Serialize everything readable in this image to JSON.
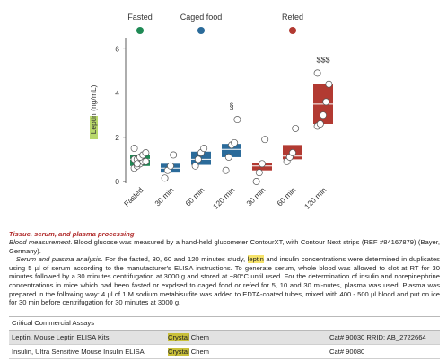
{
  "chart_data": {
    "type": "box",
    "ylabel_parts": [
      "Leptin",
      " (ng/mL)"
    ],
    "ylim": [
      0,
      6.5
    ],
    "yticks": [
      0,
      2,
      4,
      6
    ],
    "groups": [
      {
        "label": "Fasted",
        "color": "#1f8a55"
      },
      {
        "label": "Caged food",
        "color": "#2b6b9a"
      },
      {
        "label": "Refed",
        "color": "#b23a32"
      }
    ],
    "categories": [
      "Fasted",
      "30 min",
      "60 min",
      "120 min",
      "30 min",
      "60 min",
      "120 min"
    ],
    "boxes": [
      {
        "group": 0,
        "q1": 0.7,
        "median": 1.0,
        "q3": 1.2,
        "points": [
          0.6,
          0.7,
          0.8,
          0.9,
          0.9,
          1.0,
          1.0,
          1.1,
          1.2,
          1.3,
          1.5,
          0.8
        ]
      },
      {
        "group": 1,
        "q1": 0.4,
        "median": 0.6,
        "q3": 0.8,
        "points": [
          0.15,
          0.5,
          0.7,
          1.2
        ]
      },
      {
        "group": 1,
        "q1": 0.75,
        "median": 1.0,
        "q3": 1.35,
        "points": [
          0.7,
          1.0,
          1.3,
          1.5
        ]
      },
      {
        "group": 1,
        "q1": 1.1,
        "median": 1.45,
        "q3": 1.7,
        "points": [
          0.5,
          1.1,
          1.65,
          1.75,
          2.8
        ]
      },
      {
        "group": 2,
        "q1": 0.5,
        "median": 0.7,
        "q3": 0.85,
        "points": [
          0.0,
          0.4,
          0.8,
          1.9
        ]
      },
      {
        "group": 2,
        "q1": 1.0,
        "median": 1.15,
        "q3": 1.65,
        "points": [
          0.9,
          1.1,
          1.3,
          2.4
        ]
      },
      {
        "group": 2,
        "q1": 2.6,
        "median": 3.5,
        "q3": 4.4,
        "points": [
          2.5,
          2.6,
          3.0,
          3.6,
          4.4,
          4.9
        ]
      }
    ],
    "annotations": [
      {
        "box": 3,
        "text": "§"
      },
      {
        "box": 6,
        "text": "$$$"
      }
    ]
  },
  "section": {
    "title": "Tissue, serum, and plasma processing",
    "p1_runin": "Blood measurement",
    "p1_a": ". Blood glucose was measured by a hand-held glucometer ContourXT, with Contour Next strips (REF #84167879) (Bayer, Germany).",
    "p2_runin": "Serum and plasma analysis",
    "p2_a": ". For the fasted, 30, 60 and 120 minutes study, ",
    "p2_hl": "leptin",
    "p2_b": " and insulin concentrations were determined in duplicates using 5 µl of serum according to the manufacturer's ELISA instructions. To generate serum, whole blood was allowed to clot at RT for 30 minutes followed by a 30 minutes centrifugation at 3000 g and stored at −80°C until used. For the determination of insulin and norepinephrine concentrations in mice which had been fasted or expdsed to caged food or refed for 5, 10 and 30 mi-nutes, plasma was used. Plasma was prepared in the following way: 4 µl of 1 M sodium metabisulfite was added to EDTA-coated tubes, mixed with 400 - 500 µl blood and put on ice for 30 min before centrifugation for 30 minutes at 3000 g."
  },
  "table": {
    "title": "Critical Commercial Assays",
    "rows": [
      {
        "name": "Leptin, Mouse Leptin ELISA Kits",
        "vendor_hl": "Crystal",
        "vendor_rest": " Chem",
        "cat": "Cat# 90030 RRID: AB_2722664"
      },
      {
        "name": "Insulin, Ultra Sensitive Mouse Insulin ELISA",
        "vendor_hl": "Crystal",
        "vendor_rest": " Chem",
        "cat": "Cat# 90080"
      }
    ]
  }
}
